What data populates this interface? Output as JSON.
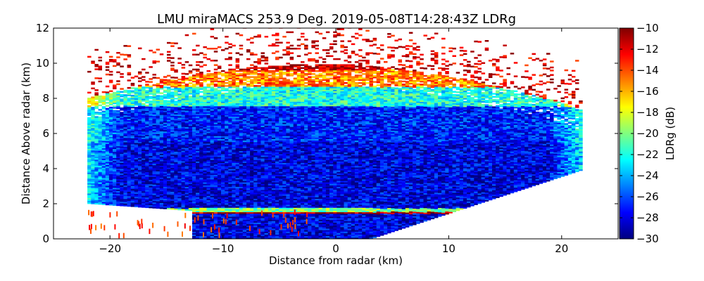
{
  "chart_data": {
    "type": "heatmap",
    "title": "LMU miraMACS 253.9 Deg. 2019-05-08T14:28:43Z  LDRg",
    "xlabel": "Distance from radar (km)",
    "ylabel": "Distance Above radar  (km)",
    "xlim": [
      -25,
      25
    ],
    "ylim": [
      0,
      12
    ],
    "x_ticks": [
      -20,
      -10,
      0,
      10,
      20
    ],
    "x_tick_labels": [
      "−20",
      "−10",
      "0",
      "10",
      "20"
    ],
    "y_ticks": [
      0,
      2,
      4,
      6,
      8,
      10,
      12
    ],
    "y_tick_labels": [
      "0",
      "2",
      "4",
      "6",
      "8",
      "10",
      "12"
    ],
    "colorbar": {
      "label": "LDRg (dB)",
      "range": [
        -30,
        -10
      ],
      "colormap": "jet",
      "ticks": [
        -30,
        -28,
        -26,
        -24,
        -22,
        -20,
        -18,
        -16,
        -14,
        -12,
        -10
      ],
      "tick_labels": [
        "−30",
        "−28",
        "−26",
        "−24",
        "−22",
        "−20",
        "−18",
        "−16",
        "−14",
        "−12",
        "−10"
      ]
    },
    "scan_region": {
      "description_values": "RHI scan sector with observed LDR values",
      "left_edge_x": -22,
      "left_edge_y_range": [
        2,
        8
      ],
      "right_edge_x": 21.6,
      "right_edge_y_range": [
        3.9,
        7.5
      ],
      "cloud_top_km": 9.5,
      "low_layer_km": 1.6
    },
    "ldr_layers": [
      {
        "y": [
          0,
          1.4
        ],
        "ldr_dB": -28
      },
      {
        "y": [
          1.5,
          1.7
        ],
        "ldr_dB": -20
      },
      {
        "y": [
          1.7,
          5.5
        ],
        "ldr_dB": -28
      },
      {
        "y": [
          5.5,
          7.5
        ],
        "ldr_dB": -27
      },
      {
        "y": [
          7.5,
          8.6
        ],
        "ldr_dB": -22
      },
      {
        "y": [
          8.6,
          9.6
        ],
        "ldr_dB": -15
      },
      {
        "y": [
          9.6,
          12
        ],
        "ldr_dB": -11
      }
    ]
  }
}
